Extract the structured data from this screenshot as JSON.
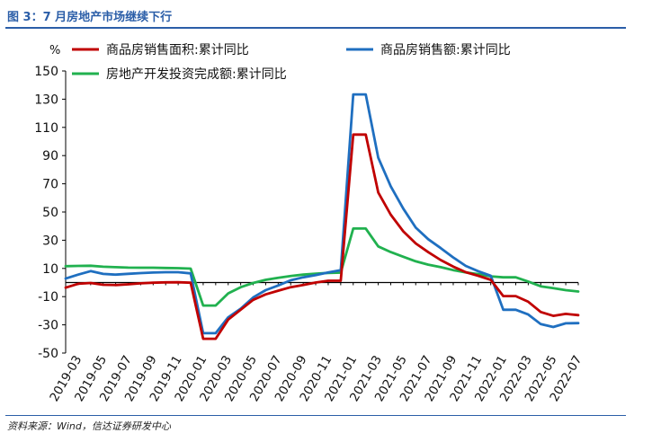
{
  "figure": {
    "title": "图 3：7 月房地产市场继续下行",
    "source": "资料来源：Wind，信达证券研发中心"
  },
  "chart_data": {
    "type": "line",
    "ylabel": "%",
    "ylim": [
      -50,
      150
    ],
    "yticks": [
      150,
      130,
      110,
      90,
      70,
      50,
      30,
      10,
      -10,
      -30,
      -50
    ],
    "xtick_labels": [
      "2019-03",
      "2019-05",
      "2019-07",
      "2019-09",
      "2019-11",
      "2020-01",
      "2020-03",
      "2020-05",
      "2020-07",
      "2020-09",
      "2020-11",
      "2021-01",
      "2021-03",
      "2021-05",
      "2021-07",
      "2021-09",
      "2021-11",
      "2022-01",
      "2022-03",
      "2022-05",
      "2022-07"
    ],
    "legend_position": "top",
    "x": [
      "2019-02",
      "2019-03",
      "2019-04",
      "2019-05",
      "2019-06",
      "2019-07",
      "2019-08",
      "2019-09",
      "2019-10",
      "2019-11",
      "2019-12",
      "2020-01",
      "2020-02",
      "2020-03",
      "2020-04",
      "2020-05",
      "2020-06",
      "2020-07",
      "2020-08",
      "2020-09",
      "2020-10",
      "2020-11",
      "2020-12",
      "2021-01",
      "2021-02",
      "2021-03",
      "2021-04",
      "2021-05",
      "2021-06",
      "2021-07",
      "2021-08",
      "2021-09",
      "2021-10",
      "2021-11",
      "2021-12",
      "2022-01",
      "2022-02",
      "2022-03",
      "2022-04",
      "2022-05",
      "2022-06",
      "2022-07"
    ],
    "series": [
      {
        "name": "商品房销售面积:累计同比",
        "color": "#c00000",
        "values": [
          -3.6,
          -0.9,
          -0.3,
          -1.6,
          -1.8,
          -1.3,
          -0.6,
          -0.1,
          0.1,
          0.2,
          -0.1,
          -39.9,
          -39.9,
          -26.3,
          -19.3,
          -12.3,
          -8.4,
          -5.8,
          -3.3,
          -1.8,
          0.0,
          1.3,
          1.3,
          104.9,
          104.9,
          63.8,
          48.1,
          36.3,
          27.7,
          21.5,
          15.9,
          11.3,
          7.3,
          4.8,
          1.9,
          -9.6,
          -9.6,
          -13.6,
          -20.9,
          -23.6,
          -22.2,
          -23.1
        ]
      },
      {
        "name": "商品房销售额:累计同比",
        "color": "#1f6fc0",
        "values": [
          2.8,
          5.6,
          8.1,
          6.1,
          5.6,
          6.2,
          6.7,
          7.1,
          7.3,
          7.3,
          6.5,
          -35.9,
          -35.9,
          -24.7,
          -18.6,
          -10.6,
          -5.4,
          -2.1,
          1.6,
          3.7,
          5.3,
          7.2,
          8.7,
          133.4,
          133.4,
          88.5,
          68.2,
          52.4,
          38.9,
          30.7,
          24.4,
          17.8,
          11.8,
          8.0,
          4.8,
          -19.3,
          -19.3,
          -22.7,
          -29.5,
          -31.5,
          -28.9,
          -28.8
        ]
      },
      {
        "name": "房地产开发投资完成额:累计同比",
        "color": "#21b14f",
        "values": [
          11.6,
          11.8,
          11.9,
          11.2,
          10.9,
          10.6,
          10.5,
          10.5,
          10.3,
          10.2,
          9.9,
          -16.3,
          -16.3,
          -7.7,
          -3.3,
          -0.3,
          1.9,
          3.4,
          4.6,
          5.6,
          6.3,
          6.8,
          7.0,
          38.3,
          38.3,
          25.6,
          21.6,
          18.3,
          15.0,
          12.7,
          10.9,
          8.8,
          7.2,
          6.0,
          4.4,
          3.7,
          3.7,
          0.7,
          -2.7,
          -4.0,
          -5.4,
          -6.4
        ]
      }
    ]
  }
}
